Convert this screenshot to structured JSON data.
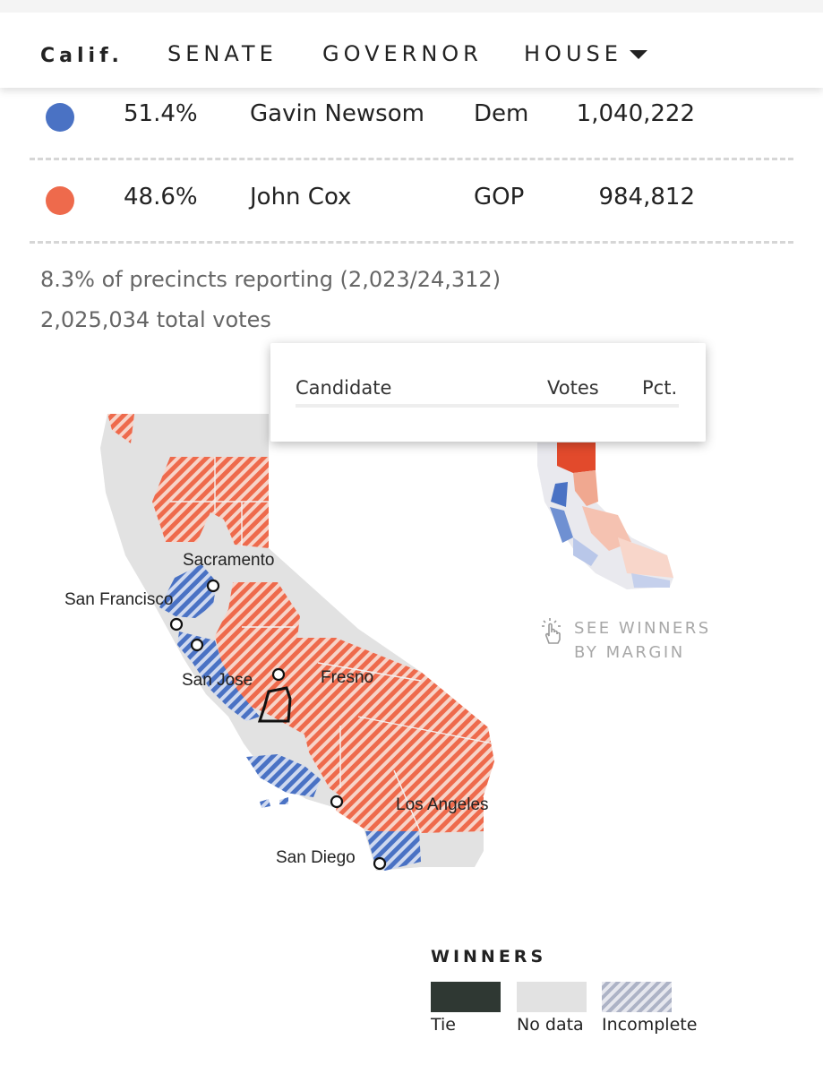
{
  "nav": {
    "state": "Calif.",
    "tabs": [
      "SENATE",
      "GOVERNOR",
      "HOUSE"
    ]
  },
  "results": [
    {
      "pct": "51.4%",
      "name": "Gavin Newsom",
      "party": "Dem",
      "votes": "1,040,222",
      "color": "#4a72c4"
    },
    {
      "pct": "48.6%",
      "name": "John Cox",
      "party": "GOP",
      "votes": "984,812",
      "color": "#ee6a4c"
    }
  ],
  "reporting": "8.3% of precincts reporting (2,023/24,312)",
  "total_votes": "2,025,034 total votes",
  "tooltip": {
    "col_candidate": "Candidate",
    "col_votes": "Votes",
    "col_pct": "Pct."
  },
  "map": {
    "cities": [
      "Sacramento",
      "San Francisco",
      "San Jose",
      "Fresno",
      "Los Angeles",
      "San Diego"
    ],
    "colors": {
      "dem": "#4a72c4",
      "gop": "#ee6a4c",
      "none": "#e2e2e2"
    }
  },
  "margin_toggle": {
    "line1": "SEE WINNERS",
    "line2": "BY MARGIN",
    "icon": "pointer-hand-icon"
  },
  "legend": {
    "title": "WINNERS",
    "items": [
      {
        "label": "Tie",
        "color": "#2f3833"
      },
      {
        "label": "No data",
        "color": "#e2e2e2"
      },
      {
        "label": "Incomplete",
        "color": "#b9bfd0"
      }
    ]
  }
}
